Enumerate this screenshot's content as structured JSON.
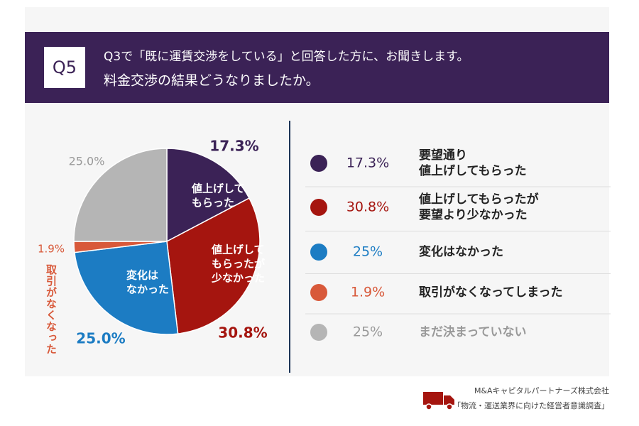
{
  "chart_data": {
    "type": "pie",
    "badge": "Q5",
    "title": "Q3で「既に運賃交渉をしている」と回答した方に、お聞きします。",
    "subtitle": "料金交渉の結果どうなりましたか。",
    "categories": [
      "要望通り\n値上げしてもらった",
      "値上げしてもらったが\n要望より少なかった",
      "変化はなかった",
      "取引がなくなってしまった",
      "まだ決まっていない"
    ],
    "values": [
      17.3,
      30.8,
      25.0,
      1.9,
      25.0
    ],
    "value_labels": [
      "17.3%",
      "30.8%",
      "25.0%",
      "1.9%",
      "25.0%"
    ],
    "legend_value_labels": [
      "17.3%",
      "30.8%",
      "25%",
      "1.9%",
      "25%"
    ],
    "slice_labels": [
      [
        "値上げして",
        "もらった"
      ],
      [
        "値上げして",
        "もらったが",
        "少なかった"
      ],
      [
        "変化は",
        "なかった"
      ],
      [
        "取引がなくなった"
      ],
      []
    ],
    "colors": [
      "#3b2256",
      "#a5150f",
      "#1c7cc3",
      "#d8593a",
      "#b5b5b5"
    ],
    "source": [
      "M&Aキャピタルパートナーズ株式会社",
      "「物流・運送業界に向けた経営者意識調査」"
    ]
  }
}
